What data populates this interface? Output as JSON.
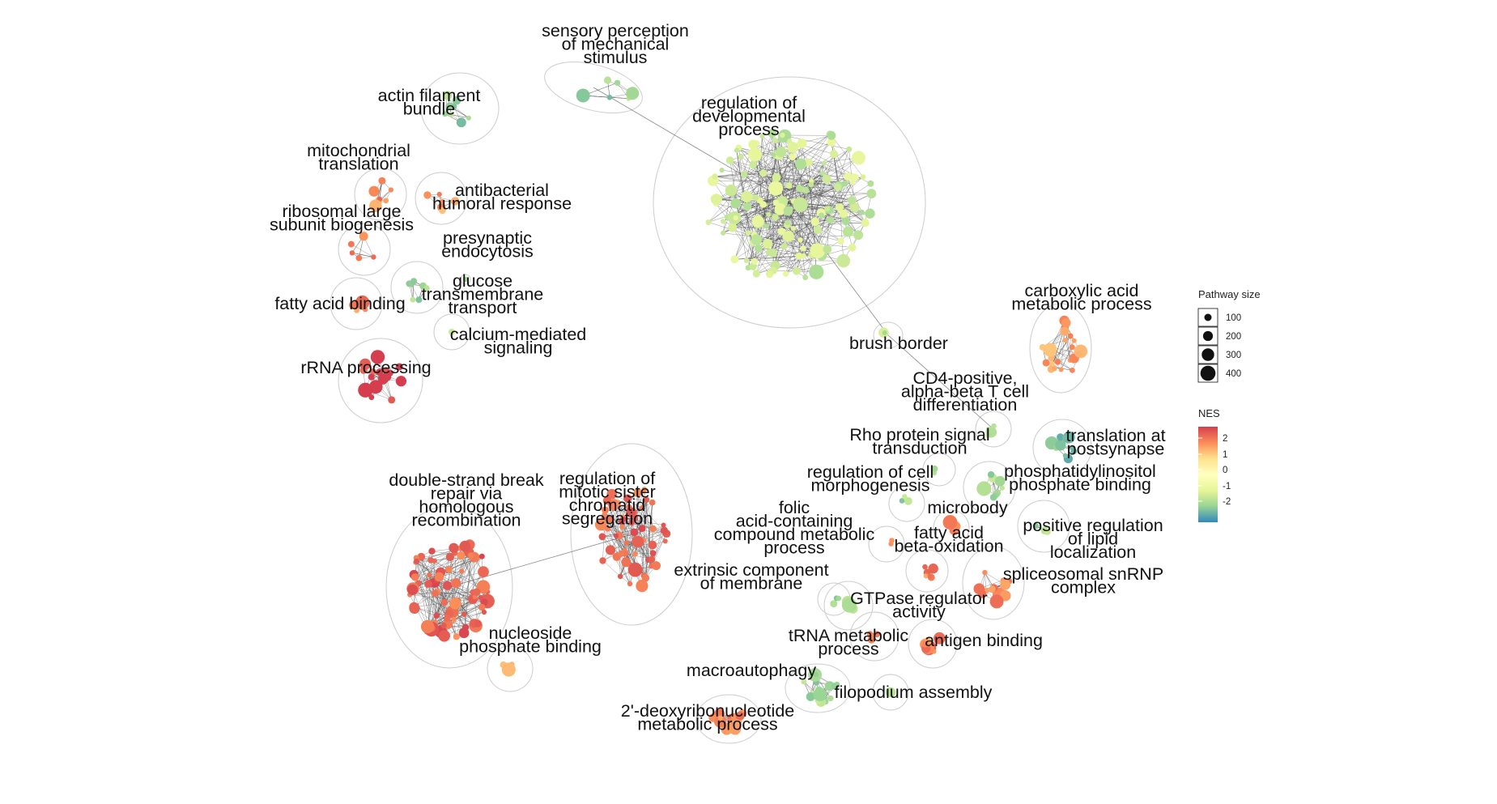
{
  "colors": {
    "nes_scale": [
      "#3288bd",
      "#99d594",
      "#e6f598",
      "#ffffbf",
      "#fee08b",
      "#fc8d59",
      "#d53e4f"
    ],
    "cluster_outline": "#cccccc",
    "edge": "#444444"
  },
  "clusters": [
    {
      "id": "sensory",
      "lines": [
        "sensory perception",
        "of mechanical",
        "stimulus"
      ],
      "nes": -1.3
    },
    {
      "id": "actin",
      "lines": [
        "actin filament",
        "bundle"
      ],
      "nes": -1.3
    },
    {
      "id": "mito",
      "lines": [
        "mitochondrial",
        "translation"
      ],
      "nes": 1.7
    },
    {
      "id": "antibac",
      "lines": [
        "antibacterial",
        "humoral response"
      ],
      "nes": 1.6
    },
    {
      "id": "ribo",
      "lines": [
        "ribosomal large",
        "subunit biogenesis"
      ],
      "nes": 1.7
    },
    {
      "id": "presyn",
      "lines": [
        "presynaptic",
        "endocytosis"
      ],
      "nes": -1.2
    },
    {
      "id": "glucose",
      "lines": [
        "glucose",
        "transmembrane",
        "transport"
      ],
      "nes": -1.2
    },
    {
      "id": "fattyacid",
      "lines": [
        "fatty acid binding"
      ],
      "nes": 1.7
    },
    {
      "id": "calcium",
      "lines": [
        "calcium-mediated",
        "signaling"
      ],
      "nes": -1.2
    },
    {
      "id": "rrna",
      "lines": [
        "rRNA processing"
      ],
      "nes": 2.3
    },
    {
      "id": "devproc",
      "lines": [
        "regulation of",
        "developmental",
        "process"
      ],
      "nes": -0.8
    },
    {
      "id": "brush",
      "lines": [
        "brush border"
      ],
      "nes": -1.0
    },
    {
      "id": "carbox",
      "lines": [
        "carboxylic acid",
        "metabolic process"
      ],
      "nes": 1.5
    },
    {
      "id": "cd4",
      "lines": [
        "CD4-positive,",
        "alpha-beta T cell",
        "differentiation"
      ],
      "nes": -1.2
    },
    {
      "id": "rho",
      "lines": [
        "Rho protein signal",
        "transduction"
      ],
      "nes": -1.2
    },
    {
      "id": "transpost",
      "lines": [
        "translation at",
        "postsynapse"
      ],
      "nes": -1.5
    },
    {
      "id": "regcell",
      "lines": [
        "regulation of cell",
        "morphogenesis"
      ],
      "nes": -1.2
    },
    {
      "id": "phosbind",
      "lines": [
        "phosphatidylinositol",
        "phosphate binding"
      ],
      "nes": -1.2
    },
    {
      "id": "folic",
      "lines": [
        "folic",
        "acid-containing",
        "compound metabolic",
        "process"
      ],
      "nes": 1.8
    },
    {
      "id": "microbody",
      "lines": [
        "microbody"
      ],
      "nes": 1.8
    },
    {
      "id": "betaox",
      "lines": [
        "fatty acid",
        "beta-oxidation"
      ],
      "nes": 1.8
    },
    {
      "id": "lipid",
      "lines": [
        "positive regulation",
        "of lipid",
        "localization"
      ],
      "nes": -1.2
    },
    {
      "id": "dsbreak",
      "lines": [
        "double-strand break",
        "repair via",
        "homologous",
        "recombination"
      ],
      "nes": 2.0
    },
    {
      "id": "mitotic",
      "lines": [
        "regulation of",
        "mitotic sister",
        "chromatid",
        "segregation"
      ],
      "nes": 2.0
    },
    {
      "id": "extrinsic",
      "lines": [
        "extrinsic component",
        "of membrane"
      ],
      "nes": -1.2
    },
    {
      "id": "splice",
      "lines": [
        "spliceosomal snRNP",
        "complex"
      ],
      "nes": 1.8
    },
    {
      "id": "gtpase",
      "lines": [
        "GTPase regulator",
        "activity"
      ],
      "nes": -1.2
    },
    {
      "id": "nucleo",
      "lines": [
        "nucleoside",
        "phosphate binding"
      ],
      "nes": 1.5
    },
    {
      "id": "trna",
      "lines": [
        "tRNA metabolic",
        "process"
      ],
      "nes": 1.8
    },
    {
      "id": "antigen",
      "lines": [
        "antigen binding"
      ],
      "nes": 1.8
    },
    {
      "id": "macro",
      "lines": [
        "macroautophagy"
      ],
      "nes": -1.2
    },
    {
      "id": "filop",
      "lines": [
        "filopodium assembly"
      ],
      "nes": -1.2
    },
    {
      "id": "deoxy",
      "lines": [
        "2'-deoxyribonucleotide",
        "metabolic process"
      ],
      "nes": 1.8
    }
  ],
  "legend": {
    "size_title": "Pathway size",
    "size_breaks": [
      "100",
      "200",
      "300",
      "400"
    ],
    "color_title": "NES",
    "color_breaks": [
      "2",
      "1",
      "0",
      "-1",
      "-2"
    ]
  }
}
